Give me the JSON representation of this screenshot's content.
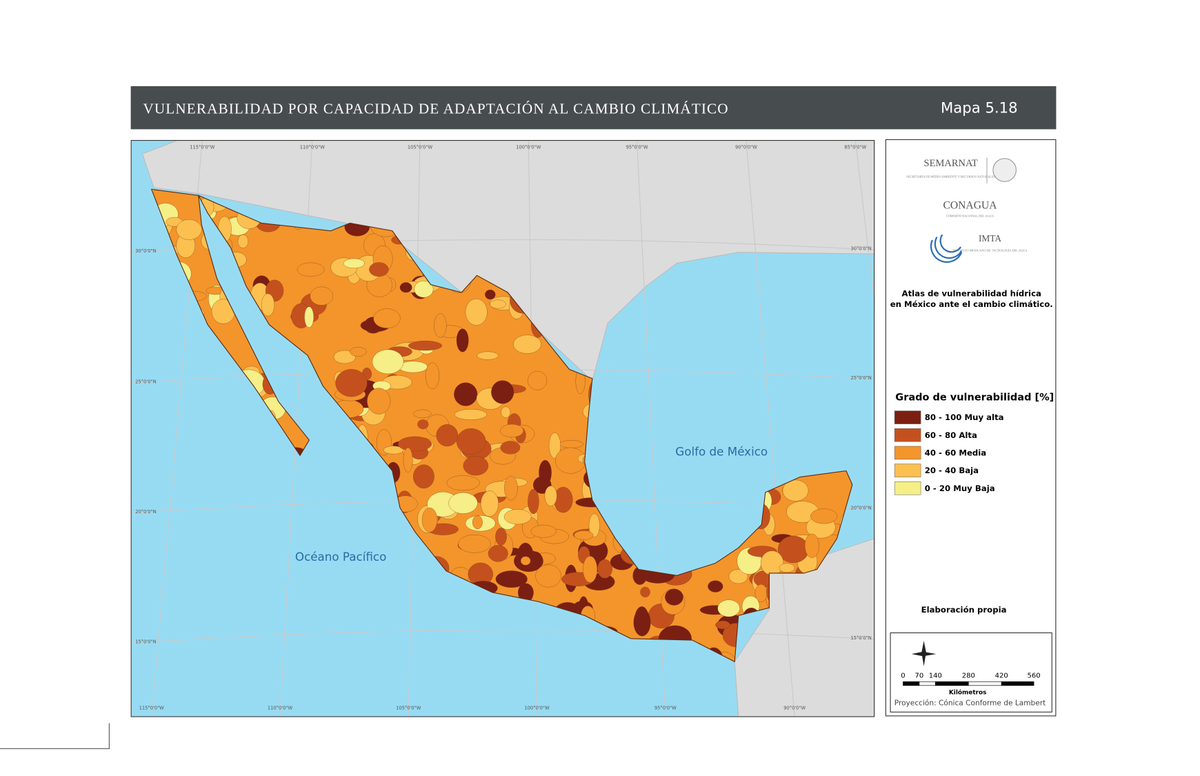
{
  "header": {
    "title": "VULNERABILIDAD POR CAPACIDAD DE ADAPTACIÓN AL CAMBIO CLIMÁTICO",
    "map_number": "Mapa 5.18"
  },
  "map": {
    "labels": {
      "gulf": "Golfo de México",
      "pacific": "Océano Pacífico"
    },
    "coords": {
      "top": [
        "115°0'0\"W",
        "110°0'0\"W",
        "105°0'0\"W",
        "100°0'0\"W",
        "95°0'0\"W",
        "90°0'0\"W",
        "85°0'0\"W"
      ],
      "bottom": [
        "115°0'0\"W",
        "110°0'0\"W",
        "105°0'0\"W",
        "100°0'0\"W",
        "95°0'0\"W",
        "90°0'0\"W"
      ],
      "left": [
        "30°0'0\"N",
        "25°0'0\"N",
        "20°0'0\"N",
        "15°0'0\"N"
      ],
      "right": [
        "30°0'0\"N",
        "25°0'0\"N",
        "20°0'0\"N",
        "15°0'0\"N"
      ]
    }
  },
  "panel": {
    "logos": {
      "semarnat": "SEMARNAT",
      "semarnat_sub": "SECRETARÍA DE MEDIO AMBIENTE Y RECURSOS NATURALES",
      "conagua": "CONAGUA",
      "conagua_sub": "COMISIÓN NACIONAL DEL AGUA",
      "imta": "IMTA",
      "imta_sub": "INSTITUTO MEXICANO DE TECNOLOGÍA DEL AGUA"
    },
    "atlas_title": [
      "Atlas de vulnerabilidad  hídrica",
      "en México ante el cambio climático."
    ],
    "legend": {
      "title": "Grado de vulnerabilidad [%]",
      "items": [
        {
          "label": "80 - 100 Muy alta",
          "color": "#7b1f12"
        },
        {
          "label": "60 - 80 Alta",
          "color": "#c4511d"
        },
        {
          "label": "40 - 60 Media",
          "color": "#f3952b"
        },
        {
          "label": "20 - 40 Baja",
          "color": "#fbc04f"
        },
        {
          "label": "0 - 20 Muy Baja",
          "color": "#f6ee86"
        }
      ]
    },
    "credit": "Elaboración propia",
    "scale": {
      "ticks": [
        "0",
        "70",
        "140",
        "280",
        "420",
        "560"
      ],
      "unit": "Kilómetros",
      "projection": "Proyección: Cónica Conforme de Lambert"
    }
  }
}
